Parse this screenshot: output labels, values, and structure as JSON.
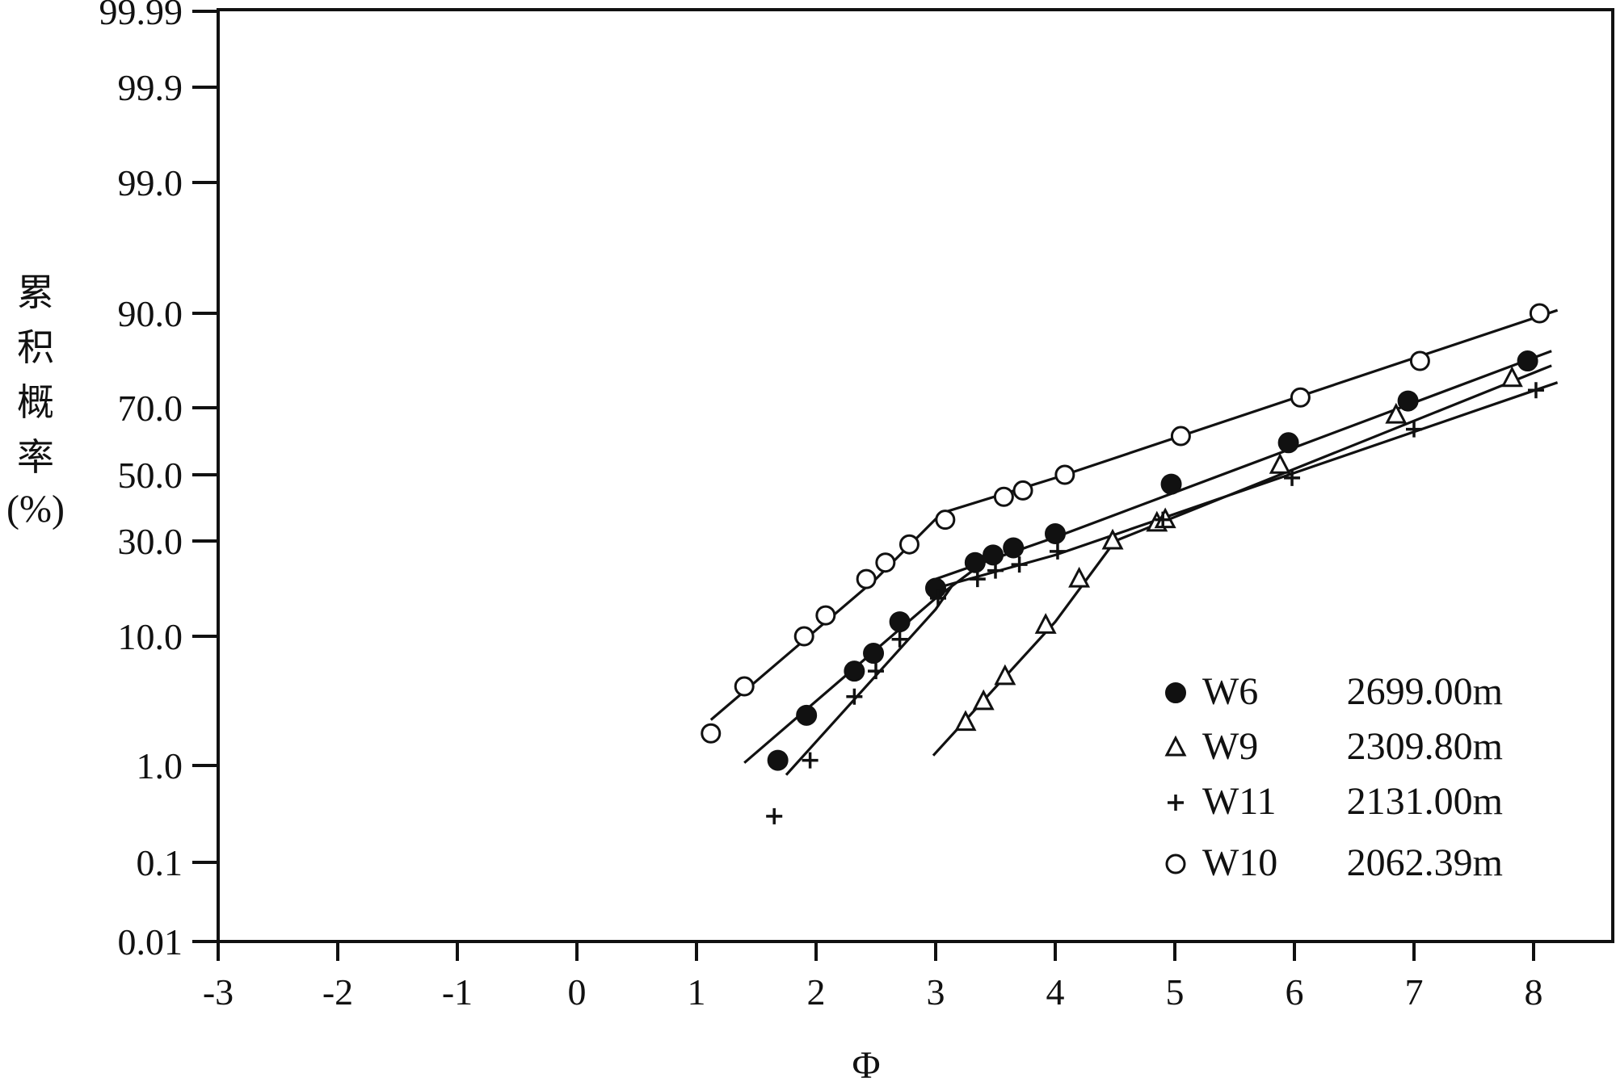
{
  "chart_data": {
    "type": "scatter",
    "xlabel": "Φ",
    "ylabel_chars": [
      "累",
      "积",
      "概",
      "率",
      "(%)"
    ],
    "xlim": [
      -3,
      8.6
    ],
    "x_ticks": [
      "-3",
      "-2",
      "-1",
      "0",
      "1",
      "2",
      "3",
      "4",
      "5",
      "6",
      "7",
      "8"
    ],
    "y_ticks": [
      "0.01",
      "0.1",
      "1.0",
      "10.0",
      "30.0",
      "50.0",
      "70.0",
      "90.0",
      "99.0",
      "99.9",
      "99.99"
    ],
    "series": [
      {
        "name": "W6",
        "depth": "2699.00m",
        "marker": "filled-circle",
        "points": [
          [
            1.68,
            1.1
          ],
          [
            1.92,
            2.5
          ],
          [
            2.32,
            5.5
          ],
          [
            2.48,
            7.5
          ],
          [
            2.7,
            12
          ],
          [
            3.0,
            18
          ],
          [
            3.33,
            24
          ],
          [
            3.48,
            26
          ],
          [
            3.65,
            28
          ],
          [
            4.0,
            32
          ],
          [
            4.97,
            47
          ],
          [
            5.95,
            60
          ],
          [
            6.95,
            72
          ],
          [
            7.95,
            82
          ]
        ],
        "fit_lines": [
          [
            [
              1.4,
              1.05
            ],
            [
              3.0,
              16
            ],
            [
              3.4,
              24
            ]
          ],
          [
            [
              3.0,
              20
            ],
            [
              4.0,
              31
            ],
            [
              8.15,
              84
            ]
          ]
        ]
      },
      {
        "name": "W9",
        "depth": "2309.80m",
        "marker": "open-triangle",
        "points": [
          [
            3.25,
            2.2
          ],
          [
            3.4,
            3.2
          ],
          [
            3.58,
            5.0
          ],
          [
            3.92,
            11.5
          ],
          [
            4.2,
            20
          ],
          [
            4.48,
            30
          ],
          [
            4.85,
            35
          ],
          [
            4.92,
            36
          ],
          [
            5.88,
            53
          ],
          [
            6.85,
            68
          ],
          [
            7.82,
            78
          ]
        ],
        "fit_lines": [
          [
            [
              2.98,
              1.2
            ],
            [
              4.0,
              12
            ],
            [
              4.5,
              30
            ]
          ],
          [
            [
              4.5,
              30
            ],
            [
              8.15,
              81
            ]
          ]
        ]
      },
      {
        "name": "W11",
        "depth": "2131.00m",
        "marker": "plus",
        "points": [
          [
            1.65,
            0.3
          ],
          [
            1.95,
            1.1
          ],
          [
            2.32,
            3.5
          ],
          [
            2.5,
            5.5
          ],
          [
            2.7,
            9.5
          ],
          [
            3.02,
            16
          ],
          [
            3.35,
            20
          ],
          [
            3.5,
            22
          ],
          [
            3.7,
            23.5
          ],
          [
            4.02,
            27
          ],
          [
            4.9,
            36
          ],
          [
            5.98,
            49
          ],
          [
            7.0,
            64
          ],
          [
            8.02,
            75
          ]
        ],
        "fit_lines": [
          [
            [
              1.75,
              0.8
            ],
            [
              3.0,
              14
            ],
            [
              3.15,
              19
            ]
          ],
          [
            [
              3.0,
              18
            ],
            [
              4.0,
              26
            ],
            [
              8.2,
              77
            ]
          ]
        ]
      },
      {
        "name": "W10",
        "depth": "2062.39m",
        "marker": "open-circle",
        "points": [
          [
            1.12,
            1.8
          ],
          [
            1.4,
            4.2
          ],
          [
            1.9,
            10
          ],
          [
            2.08,
            13
          ],
          [
            2.42,
            20
          ],
          [
            2.58,
            24
          ],
          [
            2.78,
            29
          ],
          [
            3.08,
            36
          ],
          [
            3.57,
            43
          ],
          [
            3.73,
            45
          ],
          [
            4.08,
            50
          ],
          [
            5.05,
            62
          ],
          [
            6.05,
            73
          ],
          [
            7.05,
            82
          ],
          [
            8.05,
            90
          ]
        ],
        "fit_lines": [
          [
            [
              1.12,
              2.3
            ],
            [
              2.5,
              20
            ],
            [
              3.05,
              38
            ]
          ],
          [
            [
              3.05,
              38
            ],
            [
              4.0,
              49
            ],
            [
              8.2,
              90.5
            ]
          ]
        ]
      }
    ],
    "legend_position": "bottom-right",
    "grid": false
  }
}
